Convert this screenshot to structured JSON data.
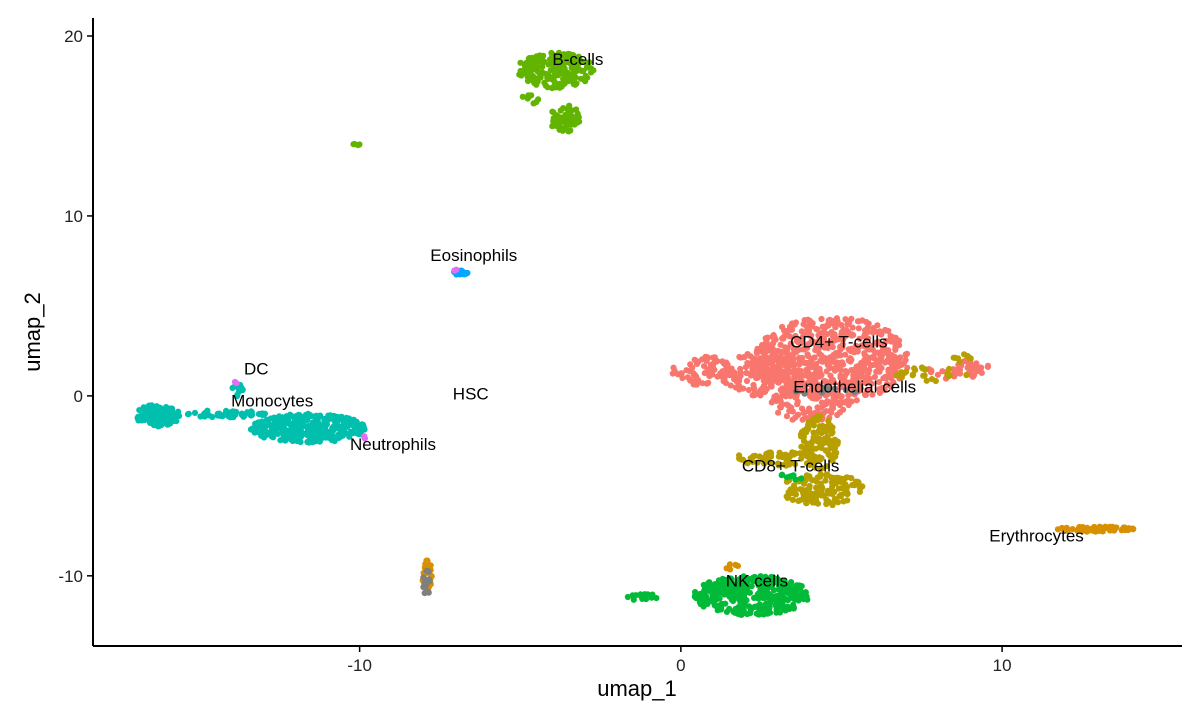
{
  "chart_data": {
    "type": "scatter",
    "title": "",
    "xlabel": "umap_1",
    "ylabel": "umap_2",
    "xlim": [
      -18.3,
      15.6
    ],
    "ylim": [
      -13.9,
      21.0
    ],
    "x_ticks": [
      -10,
      0,
      10
    ],
    "x_tick_labels": [
      "-10",
      "0",
      "10"
    ],
    "y_ticks": [
      -10,
      0,
      10,
      20
    ],
    "y_tick_labels": [
      "-10",
      "0",
      "10",
      "20"
    ],
    "grid": false,
    "legend": "none",
    "series": [
      {
        "name": "CD4+ T-cells",
        "color": "#F8766D",
        "clusters": [
          {
            "cx": 4.7,
            "cy": 2.0,
            "rx": 2.4,
            "ry": 2.4,
            "n": 650
          },
          {
            "cx": 2.6,
            "cy": 1.2,
            "rx": 1.3,
            "ry": 1.3,
            "n": 140
          },
          {
            "cx": 0.7,
            "cy": 1.4,
            "rx": 1.0,
            "ry": 0.8,
            "n": 80
          },
          {
            "cx": 4.0,
            "cy": -0.5,
            "rx": 1.3,
            "ry": 1.0,
            "n": 90
          },
          {
            "cx": 8.6,
            "cy": 1.3,
            "rx": 1.0,
            "ry": 0.4,
            "n": 30
          },
          {
            "cx": 9.1,
            "cy": 1.8,
            "rx": 0.6,
            "ry": 0.3,
            "n": 20
          }
        ]
      },
      {
        "name": "CD8+ T-cells",
        "color": "#B79F00",
        "clusters": [
          {
            "cx": 4.3,
            "cy": -2.6,
            "rx": 0.6,
            "ry": 1.5,
            "n": 110
          },
          {
            "cx": 3.0,
            "cy": -3.5,
            "rx": 1.4,
            "ry": 0.4,
            "n": 60
          },
          {
            "cx": 4.4,
            "cy": -5.2,
            "rx": 1.3,
            "ry": 0.9,
            "n": 130
          },
          {
            "cx": 7.8,
            "cy": 1.2,
            "rx": 1.1,
            "ry": 0.4,
            "n": 22
          },
          {
            "cx": 8.9,
            "cy": 2.1,
            "rx": 0.5,
            "ry": 0.3,
            "n": 8
          }
        ]
      },
      {
        "name": "B-cells",
        "color": "#61B400",
        "clusters": [
          {
            "cx": -3.9,
            "cy": 18.1,
            "rx": 1.2,
            "ry": 1.0,
            "n": 200
          },
          {
            "cx": -3.6,
            "cy": 15.4,
            "rx": 0.5,
            "ry": 0.8,
            "n": 60
          },
          {
            "cx": -4.7,
            "cy": 16.5,
            "rx": 0.3,
            "ry": 0.3,
            "n": 8
          },
          {
            "cx": -10.1,
            "cy": 14.0,
            "rx": 0.1,
            "ry": 0.1,
            "n": 4
          }
        ]
      },
      {
        "name": "Monocytes",
        "color": "#00BFAD",
        "clusters": [
          {
            "cx": -16.3,
            "cy": -1.1,
            "rx": 0.7,
            "ry": 0.6,
            "n": 130
          },
          {
            "cx": -14.2,
            "cy": -1.0,
            "rx": 1.3,
            "ry": 0.2,
            "n": 50
          },
          {
            "cx": -11.6,
            "cy": -1.8,
            "rx": 1.8,
            "ry": 0.8,
            "n": 330
          },
          {
            "cx": -13.8,
            "cy": 0.3,
            "rx": 0.2,
            "ry": 0.5,
            "n": 12
          }
        ]
      },
      {
        "name": "NK cells",
        "color": "#00BA38",
        "clusters": [
          {
            "cx": 2.2,
            "cy": -11.1,
            "rx": 1.8,
            "ry": 1.1,
            "n": 350
          },
          {
            "cx": -1.2,
            "cy": -11.2,
            "rx": 0.5,
            "ry": 0.2,
            "n": 15
          },
          {
            "cx": 3.3,
            "cy": -4.6,
            "rx": 0.5,
            "ry": 0.3,
            "n": 8
          }
        ]
      },
      {
        "name": "Erythrocytes",
        "color": "#D89000",
        "clusters": [
          {
            "cx": 12.9,
            "cy": -7.4,
            "rx": 1.2,
            "ry": 0.15,
            "n": 60
          },
          {
            "cx": -7.9,
            "cy": -9.9,
            "rx": 0.15,
            "ry": 1.0,
            "n": 25
          },
          {
            "cx": 1.5,
            "cy": -9.5,
            "rx": 0.3,
            "ry": 0.2,
            "n": 6
          }
        ]
      },
      {
        "name": "Eosinophils",
        "color": "#00A9FF",
        "clusters": [
          {
            "cx": -6.8,
            "cy": 6.85,
            "rx": 0.3,
            "ry": 0.15,
            "n": 18
          }
        ]
      },
      {
        "name": "HSC",
        "color": "#7F7F7F",
        "clusters": [
          {
            "cx": -7.9,
            "cy": -10.4,
            "rx": 0.15,
            "ry": 0.7,
            "n": 18
          },
          {
            "cx": 4.5,
            "cy": 0.2,
            "rx": 1.0,
            "ry": 0.3,
            "n": 10
          }
        ]
      },
      {
        "name": "Neutrophils",
        "color": "#E36EF6",
        "clusters": [
          {
            "cx": -9.8,
            "cy": -2.3,
            "rx": 0.1,
            "ry": 0.1,
            "n": 3
          },
          {
            "cx": -13.9,
            "cy": 0.7,
            "rx": 0.1,
            "ry": 0.1,
            "n": 2
          },
          {
            "cx": -7.0,
            "cy": 7.0,
            "rx": 0.1,
            "ry": 0.1,
            "n": 2
          }
        ]
      },
      {
        "name": "Endothelial cells",
        "color": "#00B0F6",
        "clusters": []
      }
    ],
    "annotations": [
      {
        "text": "B-cells",
        "x": -4.0,
        "y": 18.4
      },
      {
        "text": "Eosinophils",
        "x": -7.8,
        "y": 7.5
      },
      {
        "text": "DC",
        "x": -13.6,
        "y": 1.2
      },
      {
        "text": "Monocytes",
        "x": -14.0,
        "y": -0.6
      },
      {
        "text": "HSC",
        "x": -7.1,
        "y": -0.2
      },
      {
        "text": "Neutrophils",
        "x": -10.3,
        "y": -3.0
      },
      {
        "text": "CD4+ T-cells",
        "x": 3.4,
        "y": 2.7
      },
      {
        "text": "Endothelial cells",
        "x": 3.5,
        "y": 0.2
      },
      {
        "text": "CD8+ T-cells",
        "x": 1.9,
        "y": -4.2
      },
      {
        "text": "Erythrocytes",
        "x": 9.6,
        "y": -8.1
      },
      {
        "text": "NK cells",
        "x": 1.4,
        "y": -10.6
      }
    ]
  }
}
